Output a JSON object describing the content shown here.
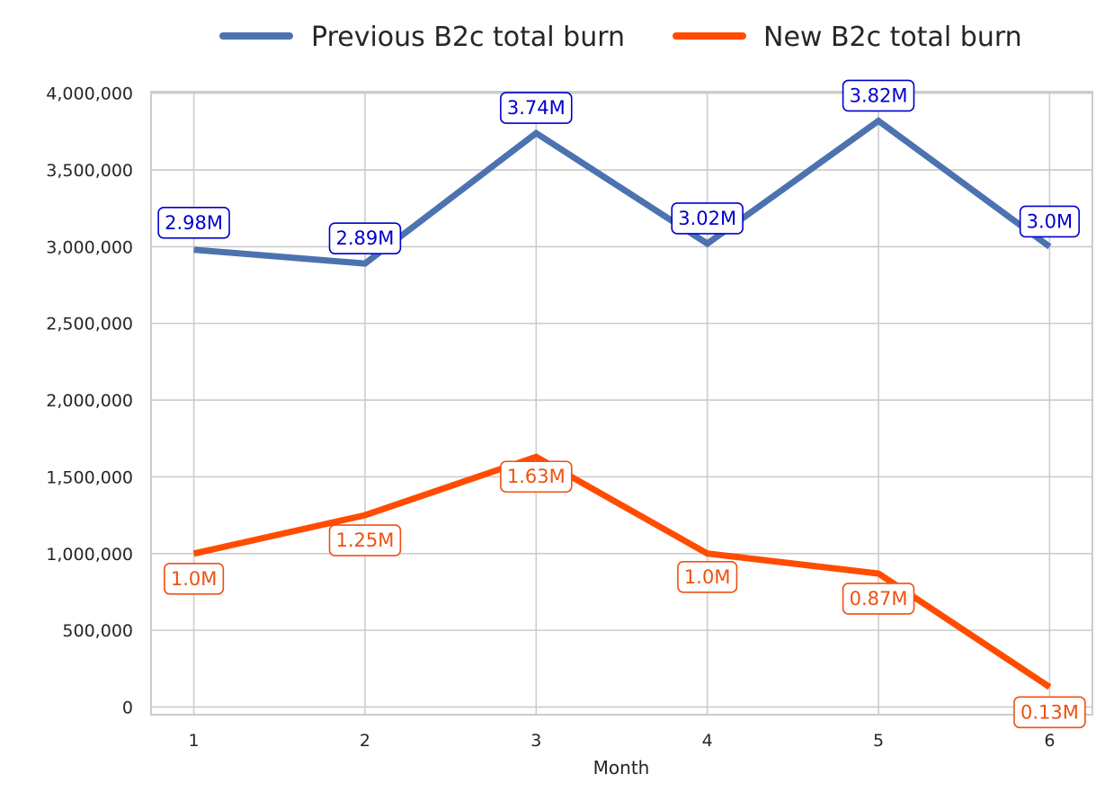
{
  "chart_data": {
    "type": "line",
    "title": "",
    "xlabel": "Month",
    "ylabel": "",
    "x": [
      1,
      2,
      3,
      4,
      5,
      6
    ],
    "x_tick_labels": [
      "1",
      "2",
      "3",
      "4",
      "5",
      "6"
    ],
    "y_ticks": [
      0,
      500000,
      1000000,
      1500000,
      2000000,
      2500000,
      3000000,
      3500000,
      4000000
    ],
    "y_tick_labels": [
      "0",
      "500,000",
      "1,000,000",
      "1,500,000",
      "2,000,000",
      "2,500,000",
      "3,000,000",
      "3,500,000",
      "4,000,000"
    ],
    "xlim": [
      0.75,
      6.25
    ],
    "ylim": [
      -50000,
      4010000
    ],
    "grid": true,
    "legend_position": "top-center",
    "series": [
      {
        "name": "Previous B2c total burn",
        "color": "#4c72b0",
        "label_color": "#0000cc",
        "values": [
          2980000,
          2890000,
          3740000,
          3020000,
          3820000,
          3000000
        ],
        "data_labels": [
          "2.98M",
          "2.89M",
          "3.74M",
          "3.02M",
          "3.82M",
          "3.0M"
        ]
      },
      {
        "name": "New B2c total burn",
        "color": "#ff4c00",
        "label_color": "#f05010",
        "values": [
          1000000,
          1250000,
          1630000,
          1000000,
          870000,
          130000
        ],
        "data_labels": [
          "1.0M",
          "1.25M",
          "1.63M",
          "1.0M",
          "0.87M",
          "0.13M"
        ]
      }
    ]
  }
}
